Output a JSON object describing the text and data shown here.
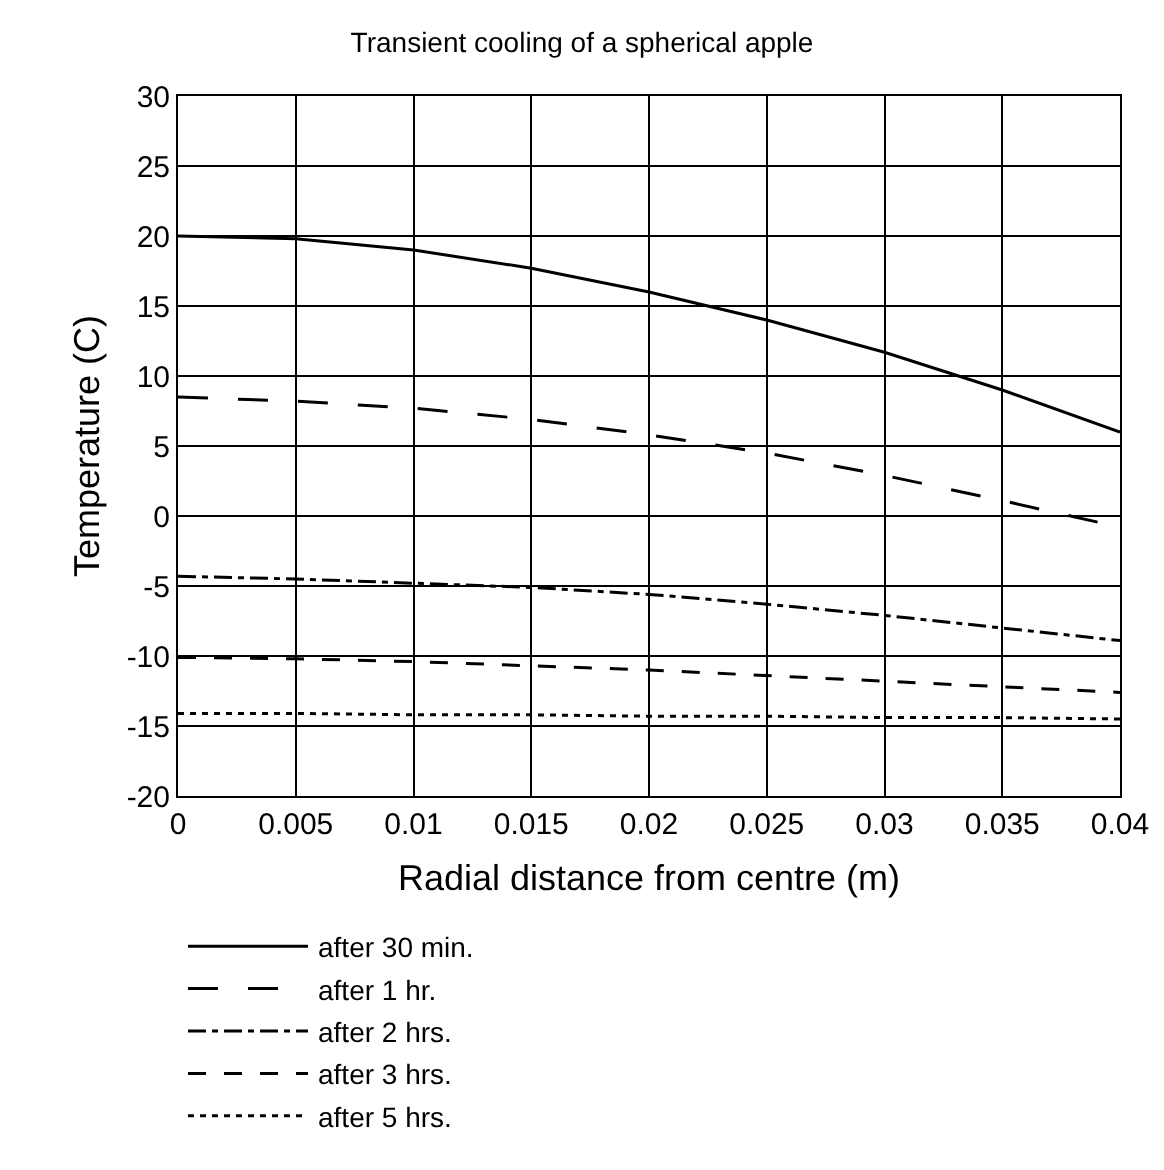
{
  "chart_data": {
    "type": "line",
    "title": "Transient cooling of a spherical apple",
    "xlabel": "Radial distance from centre (m)",
    "ylabel": "Temperature (C)",
    "x": [
      0,
      0.005,
      0.01,
      0.015,
      0.02,
      0.025,
      0.03,
      0.035,
      0.04
    ],
    "series": [
      {
        "name": "after 30 min.",
        "color": "#000000",
        "line_style": "solid",
        "values": [
          20,
          19.8,
          19,
          17.7,
          16,
          14,
          11.7,
          9,
          6
        ]
      },
      {
        "name": "after 1 hr.",
        "color": "#000000",
        "line_style": "longdash",
        "values": [
          8.5,
          8.2,
          7.7,
          6.9,
          5.8,
          4.5,
          2.9,
          1.1,
          -0.8
        ]
      },
      {
        "name": "after 2 hrs.",
        "color": "#000000",
        "line_style": "dashdot",
        "values": [
          -4.3,
          -4.5,
          -4.8,
          -5.1,
          -5.6,
          -6.3,
          -7.1,
          -8,
          -8.9
        ]
      },
      {
        "name": "after 3 hrs.",
        "color": "#000000",
        "line_style": "dashed",
        "values": [
          -10.1,
          -10.2,
          -10.4,
          -10.7,
          -11,
          -11.4,
          -11.8,
          -12.2,
          -12.6
        ]
      },
      {
        "name": "after 5 hrs.",
        "color": "#000000",
        "line_style": "dotted",
        "values": [
          -14.1,
          -14.1,
          -14.2,
          -14.2,
          -14.3,
          -14.3,
          -14.4,
          -14.4,
          -14.5
        ]
      }
    ],
    "xlim": [
      0,
      0.04
    ],
    "xticks": [
      0,
      0.005,
      0.01,
      0.015,
      0.02,
      0.025,
      0.03,
      0.035,
      0.04
    ],
    "ylim": [
      -20,
      30
    ],
    "yticks": [
      -20,
      -15,
      -10,
      -5,
      0,
      5,
      10,
      15,
      20,
      25,
      30
    ],
    "grid": true,
    "legend": "bottom",
    "marker": "none"
  }
}
